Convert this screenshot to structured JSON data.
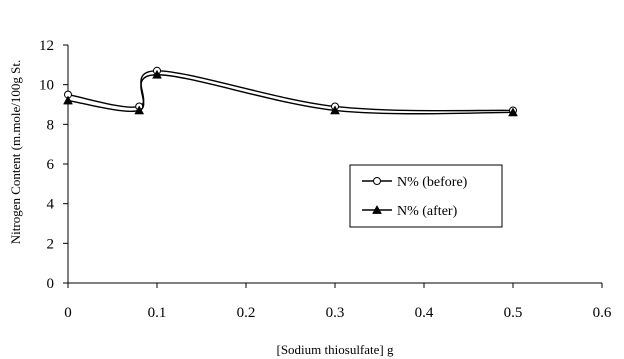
{
  "chart_data": {
    "type": "line",
    "title": "",
    "xlabel": "[Sodium thiosulfate] g",
    "ylabel": "Nitrogen Content (m.mole/100g St.",
    "xlim": [
      0,
      0.6
    ],
    "ylim": [
      0,
      12
    ],
    "x_ticks": [
      "0",
      "0.1",
      "0.2",
      "0.3",
      "0.4",
      "0.5",
      "0.6"
    ],
    "y_ticks": [
      "0",
      "2",
      "4",
      "6",
      "8",
      "10",
      "12"
    ],
    "grid": false,
    "smooth": true,
    "legend_position": "center-right",
    "series": [
      {
        "name": "N% (before)",
        "marker": "open-circle",
        "color": "#000000",
        "points": [
          [
            0,
            9.5
          ],
          [
            0.08,
            8.9
          ],
          [
            0.1,
            10.7
          ],
          [
            0.3,
            8.9
          ],
          [
            0.5,
            8.7
          ]
        ]
      },
      {
        "name": "N% (after)",
        "marker": "filled-triangle",
        "color": "#000000",
        "points": [
          [
            0,
            9.2
          ],
          [
            0.08,
            8.7
          ],
          [
            0.1,
            10.5
          ],
          [
            0.3,
            8.7
          ],
          [
            0.5,
            8.6
          ]
        ]
      }
    ]
  }
}
